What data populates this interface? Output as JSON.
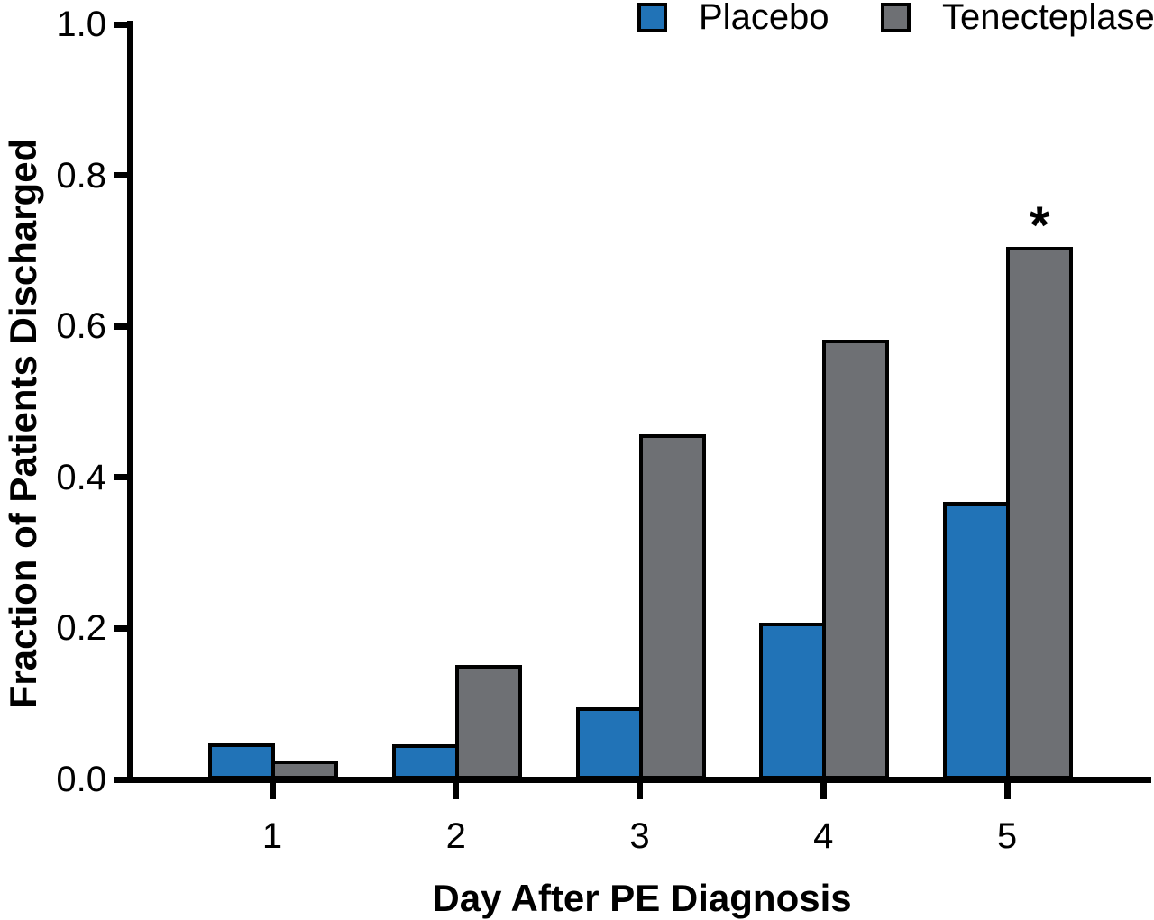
{
  "chart_data": {
    "type": "bar",
    "title": "",
    "xlabel": "Day After PE Diagnosis",
    "ylabel": "Fraction of Patients Discharged",
    "categories": [
      "1",
      "2",
      "3",
      "4",
      "5"
    ],
    "series": [
      {
        "name": "Placebo",
        "color": "#2173b7",
        "values": [
          0.048,
          0.046,
          0.095,
          0.208,
          0.368
        ]
      },
      {
        "name": "Tenecteplase",
        "color": "#6e7074",
        "values": [
          0.025,
          0.152,
          0.457,
          0.582,
          0.705
        ]
      }
    ],
    "ylim": [
      0.0,
      1.0
    ],
    "yticks": [
      "1.0",
      "0.8",
      "0.6",
      "0.4",
      "0.2",
      "0.0"
    ],
    "grid": false,
    "legend_position": "top",
    "bar_border_color": "#000000",
    "axis_color": "#000000",
    "annotations": [
      {
        "text": "*",
        "series": "Tenecteplase",
        "category": "5"
      }
    ]
  }
}
